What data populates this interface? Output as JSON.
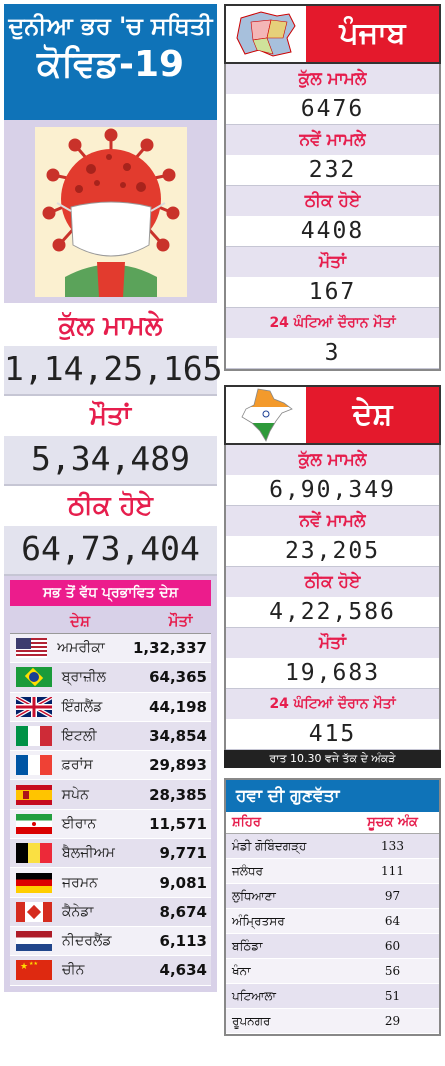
{
  "world": {
    "header_line1": "ਦੁਨੀਆ ਭਰ 'ਚ ਸਥਿਤੀ",
    "header_line2": "ਕੋਵਿਡ-19",
    "stats": [
      {
        "label": "ਕੁੱਲ ਮਾਮਲੇ",
        "value": "1,14,25,165"
      },
      {
        "label": "ਮੌਤਾਂ",
        "value": "5,34,489"
      },
      {
        "label": "ਠੀਕ ਹੋਏ",
        "value": "64,73,404"
      }
    ],
    "countries_title": "ਸਭ ਤੋਂ ਵੱਧ ਪ੍ਰਭਾਵਿਤ ਦੇਸ਼",
    "col_country": "ਦੇਸ਼",
    "col_deaths": "ਮੌਤਾਂ",
    "countries": [
      {
        "name": "ਅਮਰੀਕਾ",
        "deaths": "1,32,337",
        "flag": "usa"
      },
      {
        "name": "ਬ੍ਰਾਜ਼ੀਲ",
        "deaths": "64,365",
        "flag": "brazil"
      },
      {
        "name": "ਇੰਗਲੈਂਡ",
        "deaths": "44,198",
        "flag": "uk"
      },
      {
        "name": "ਇਟਲੀ",
        "deaths": "34,854",
        "flag": "italy"
      },
      {
        "name": "ਫ਼ਰਾਂਸ",
        "deaths": "29,893",
        "flag": "france"
      },
      {
        "name": "ਸਪੇਨ",
        "deaths": "28,385",
        "flag": "spain"
      },
      {
        "name": "ਈਰਾਨ",
        "deaths": "11,571",
        "flag": "iran"
      },
      {
        "name": "ਬੈਲਜੀਅਮ",
        "deaths": "9,771",
        "flag": "belgium"
      },
      {
        "name": "ਜਰਮਨ",
        "deaths": "9,081",
        "flag": "germany"
      },
      {
        "name": "ਕੈਨੇਡਾ",
        "deaths": "8,674",
        "flag": "canada"
      },
      {
        "name": "ਨੀਦਰਲੈਂਡ",
        "deaths": "6,113",
        "flag": "netherlands"
      },
      {
        "name": "ਚੀਨ",
        "deaths": "4,634",
        "flag": "china"
      }
    ]
  },
  "punjab": {
    "title": "ਪੰਜਾਬ",
    "stats": [
      {
        "label": "ਕੁੱਲ ਮਾਮਲੇ",
        "value": "6476"
      },
      {
        "label": "ਨਵੇਂ ਮਾਮਲੇ",
        "value": "232"
      },
      {
        "label": "ਠੀਕ ਹੋਏ",
        "value": "4408"
      },
      {
        "label": "ਮੌਤਾਂ",
        "value": "167"
      },
      {
        "label": "24 ਘੰਟਿਆਂ ਦੌਰਾਨ ਮੌਤਾਂ",
        "value": "3"
      }
    ]
  },
  "india": {
    "title": "ਦੇਸ਼",
    "stats": [
      {
        "label": "ਕੁੱਲ ਮਾਮਲੇ",
        "value": "6,90,349"
      },
      {
        "label": "ਨਵੇਂ ਮਾਮਲੇ",
        "value": "23,205"
      },
      {
        "label": "ਠੀਕ ਹੋਏ",
        "value": "4,22,586"
      },
      {
        "label": "ਮੌਤਾਂ",
        "value": "19,683"
      },
      {
        "label": "24 ਘੰਟਿਆਂ ਦੌਰਾਨ ਮੌਤਾਂ",
        "value": "415"
      }
    ],
    "note": "ਰਾਤ 10.30 ਵਜੇ ਤੱਕ ਦੇ ਅੰਕੜੇ"
  },
  "air_quality": {
    "title": "ਹਵਾ ਦੀ ਗੁਣਵੱਤਾ",
    "col_city": "ਸ਼ਹਿਰ",
    "col_index": "ਸੂਚਕ ਅੰਕ",
    "rows": [
      {
        "city": "ਮੰਡੀ ਗੋਬਿੰਦਗੜ੍ਹ",
        "index": "133"
      },
      {
        "city": "ਜਲੰਧਰ",
        "index": "111"
      },
      {
        "city": "ਲੁਧਿਆਣਾ",
        "index": "97"
      },
      {
        "city": "ਅੰਮ੍ਰਿਤਸਰ",
        "index": "64"
      },
      {
        "city": "ਬਠਿੰਡਾ",
        "index": "60"
      },
      {
        "city": "ਖੰਨਾ",
        "index": "56"
      },
      {
        "city": "ਪਟਿਆਲਾ",
        "index": "51"
      },
      {
        "city": "ਰੂਪਨਗਰ",
        "index": "29"
      }
    ]
  }
}
